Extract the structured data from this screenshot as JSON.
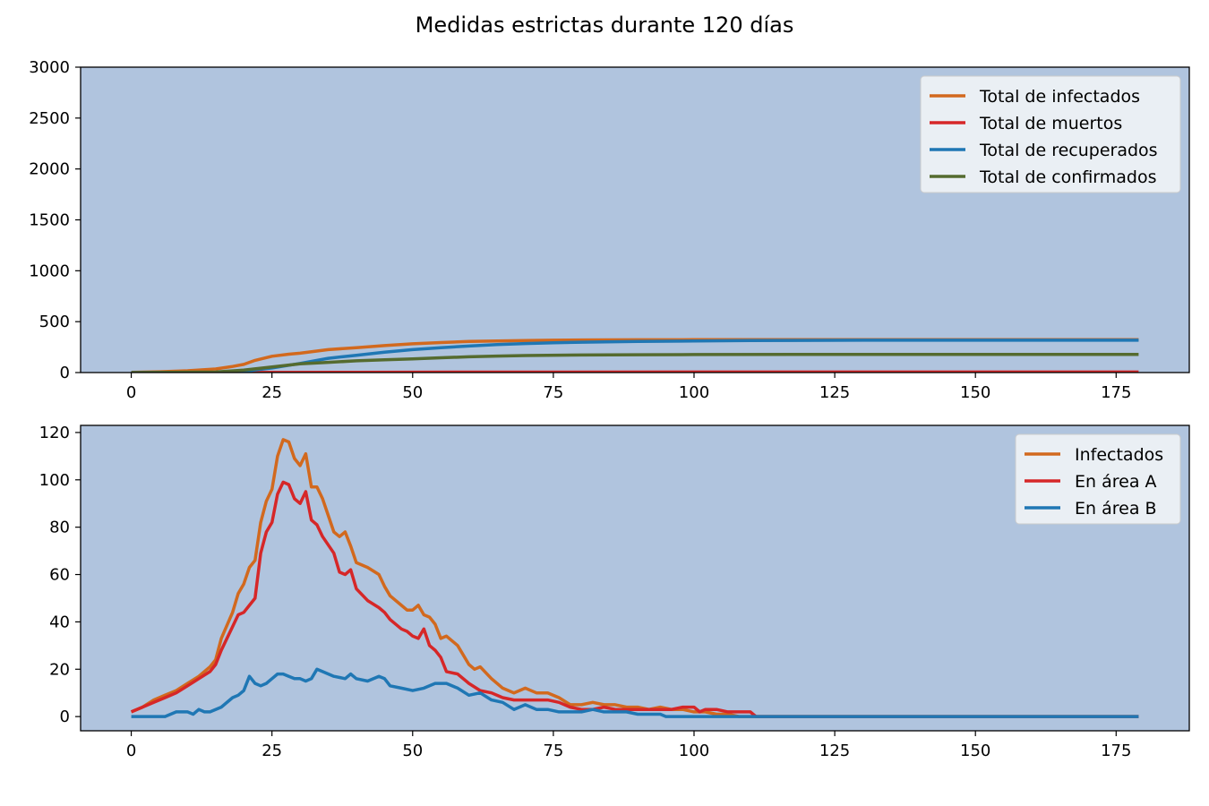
{
  "figure": {
    "title": "Medidas estrictas durante 120 días"
  },
  "chart_data": [
    {
      "type": "line",
      "plot_bg": "#b0c4de",
      "xlim": [
        -9,
        188
      ],
      "ylim": [
        0,
        3000
      ],
      "xticks": [
        0,
        25,
        50,
        75,
        100,
        125,
        150,
        175
      ],
      "yticks": [
        0,
        500,
        1000,
        1500,
        2000,
        2500,
        3000
      ],
      "legend": "top-right",
      "series": [
        {
          "name": "Total de infectados",
          "color": "#d2691e",
          "x": [
            0,
            5,
            10,
            15,
            18,
            20,
            22,
            25,
            28,
            30,
            35,
            40,
            45,
            50,
            55,
            60,
            65,
            70,
            75,
            80,
            90,
            100,
            120,
            150,
            179
          ],
          "y": [
            2,
            8,
            18,
            35,
            60,
            80,
            120,
            160,
            180,
            190,
            225,
            245,
            265,
            282,
            295,
            305,
            310,
            315,
            318,
            320,
            322,
            323,
            323,
            323,
            323
          ]
        },
        {
          "name": "Total de muertos",
          "color": "#d62728",
          "x": [
            0,
            20,
            40,
            60,
            100,
            179
          ],
          "y": [
            0,
            1,
            3,
            4,
            5,
            5
          ]
        },
        {
          "name": "Total de recuperados",
          "color": "#1f77b4",
          "x": [
            0,
            15,
            20,
            22,
            25,
            30,
            35,
            40,
            45,
            50,
            55,
            60,
            65,
            70,
            75,
            80,
            90,
            100,
            110,
            130,
            150,
            179
          ],
          "y": [
            0,
            0,
            10,
            25,
            45,
            90,
            140,
            170,
            200,
            225,
            245,
            260,
            275,
            285,
            292,
            298,
            305,
            310,
            315,
            318,
            318,
            318
          ]
        },
        {
          "name": "Total de confirmados",
          "color": "#556b2f",
          "x": [
            0,
            15,
            20,
            25,
            30,
            35,
            40,
            45,
            50,
            55,
            60,
            65,
            70,
            80,
            90,
            100,
            120,
            150,
            179
          ],
          "y": [
            0,
            5,
            25,
            55,
            85,
            100,
            115,
            125,
            135,
            145,
            155,
            162,
            167,
            172,
            175,
            177,
            178,
            178,
            178
          ]
        }
      ]
    },
    {
      "type": "line",
      "plot_bg": "#b0c4de",
      "xlim": [
        -9,
        188
      ],
      "ylim": [
        -6,
        123
      ],
      "xticks": [
        0,
        25,
        50,
        75,
        100,
        125,
        150,
        175
      ],
      "yticks": [
        0,
        20,
        40,
        60,
        80,
        100,
        120
      ],
      "legend": "top-right",
      "series": [
        {
          "name": "Infectados",
          "color": "#d2691e",
          "x": [
            0,
            2,
            4,
            6,
            8,
            10,
            12,
            14,
            15,
            16,
            18,
            19,
            20,
            21,
            22,
            23,
            24,
            25,
            26,
            27,
            28,
            29,
            30,
            31,
            32,
            33,
            34,
            36,
            37,
            38,
            39,
            40,
            42,
            44,
            45,
            46,
            48,
            49,
            50,
            51,
            52,
            53,
            54,
            55,
            56,
            58,
            60,
            61,
            62,
            64,
            66,
            68,
            70,
            72,
            74,
            76,
            78,
            80,
            82,
            84,
            86,
            88,
            90,
            92,
            94,
            96,
            98,
            100,
            102,
            104,
            106,
            108,
            110,
            112,
            179
          ],
          "y": [
            2,
            4,
            7,
            9,
            11,
            14,
            17,
            21,
            24,
            33,
            44,
            52,
            56,
            63,
            66,
            82,
            91,
            96,
            110,
            117,
            116,
            109,
            106,
            111,
            97,
            97,
            92,
            78,
            76,
            78,
            72,
            65,
            63,
            60,
            55,
            51,
            47,
            45,
            45,
            47,
            43,
            42,
            39,
            33,
            34,
            30,
            22,
            20,
            21,
            16,
            12,
            10,
            12,
            10,
            10,
            8,
            5,
            5,
            6,
            5,
            5,
            4,
            4,
            3,
            4,
            3,
            3,
            2,
            2,
            1,
            1,
            0,
            0,
            0,
            0
          ]
        },
        {
          "name": "En área A",
          "color": "#d62728",
          "x": [
            0,
            2,
            4,
            6,
            8,
            10,
            12,
            14,
            15,
            16,
            18,
            19,
            20,
            21,
            22,
            23,
            24,
            25,
            26,
            27,
            28,
            29,
            30,
            31,
            32,
            33,
            34,
            36,
            37,
            38,
            39,
            40,
            42,
            44,
            45,
            46,
            48,
            49,
            50,
            51,
            52,
            53,
            54,
            55,
            56,
            58,
            60,
            62,
            64,
            66,
            68,
            70,
            72,
            74,
            76,
            78,
            80,
            82,
            84,
            86,
            88,
            90,
            92,
            94,
            96,
            98,
            100,
            101,
            102,
            104,
            106,
            108,
            110,
            111,
            179
          ],
          "y": [
            2,
            4,
            6,
            8,
            10,
            13,
            16,
            19,
            22,
            28,
            38,
            43,
            44,
            47,
            50,
            69,
            78,
            82,
            94,
            99,
            98,
            92,
            90,
            95,
            83,
            81,
            76,
            69,
            61,
            60,
            62,
            54,
            49,
            46,
            44,
            41,
            37,
            36,
            34,
            33,
            37,
            30,
            28,
            25,
            19,
            18,
            14,
            11,
            10,
            8,
            7,
            7,
            7,
            7,
            6,
            4,
            3,
            3,
            4,
            3,
            3,
            3,
            3,
            3,
            3,
            4,
            4,
            2,
            3,
            3,
            2,
            2,
            2,
            0,
            0
          ]
        },
        {
          "name": "En área B",
          "color": "#1f77b4",
          "x": [
            0,
            2,
            4,
            6,
            8,
            10,
            11,
            12,
            13,
            14,
            16,
            18,
            19,
            20,
            21,
            22,
            23,
            24,
            25,
            26,
            27,
            28,
            29,
            30,
            31,
            32,
            33,
            34,
            36,
            38,
            39,
            40,
            42,
            44,
            45,
            46,
            48,
            50,
            52,
            54,
            56,
            58,
            60,
            62,
            64,
            66,
            68,
            70,
            72,
            74,
            76,
            78,
            80,
            82,
            84,
            86,
            88,
            90,
            92,
            94,
            95,
            96,
            100,
            120,
            179
          ],
          "y": [
            0,
            0,
            0,
            0,
            2,
            2,
            1,
            3,
            2,
            2,
            4,
            8,
            9,
            11,
            17,
            14,
            13,
            14,
            16,
            18,
            18,
            17,
            16,
            16,
            15,
            16,
            20,
            19,
            17,
            16,
            18,
            16,
            15,
            17,
            16,
            13,
            12,
            11,
            12,
            14,
            14,
            12,
            9,
            10,
            7,
            6,
            3,
            5,
            3,
            3,
            2,
            2,
            2,
            3,
            2,
            2,
            2,
            1,
            1,
            1,
            0,
            0,
            0,
            0,
            0
          ]
        }
      ]
    }
  ]
}
